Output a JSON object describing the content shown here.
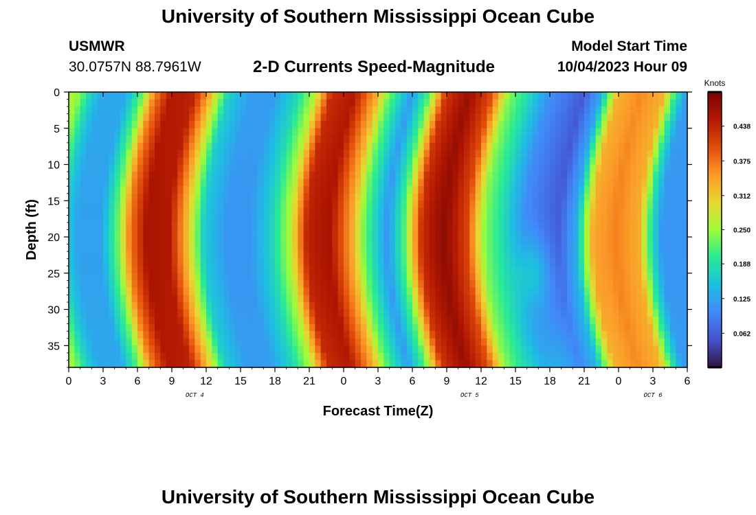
{
  "header": {
    "title": "University of Southern Mississippi Ocean Cube",
    "station": "USMWR",
    "coords": "30.0757N  88.7961W",
    "subtitle": "2-D Currents Speed-Magnitude",
    "start_label": "Model Start Time",
    "start_value": "10/04/2023 Hour 09"
  },
  "footer": {
    "title": "University of Southern Mississippi Ocean Cube"
  },
  "chart_data": {
    "type": "heatmap",
    "title": "2-D Currents Speed-Magnitude",
    "xlabel": "Forecast Time(Z)",
    "ylabel": "Depth (ft)",
    "x_tick_labels": [
      "0",
      "3",
      "6",
      "9",
      "12",
      "15",
      "18",
      "21",
      "0",
      "3",
      "6",
      "9",
      "12",
      "15",
      "18",
      "21",
      "0",
      "3",
      "6"
    ],
    "x_range_hours": [
      0,
      54
    ],
    "date_labels": [
      {
        "text": "OCT 4",
        "hour": 11
      },
      {
        "text": "OCT 5",
        "hour": 35
      },
      {
        "text": "OCT 6",
        "hour": 51
      }
    ],
    "y_ticks": [
      0,
      5,
      10,
      15,
      20,
      25,
      30,
      35
    ],
    "ylim": [
      0,
      38
    ],
    "y_inverted": true,
    "colorbar": {
      "label": "Knots",
      "range": [
        0,
        0.5
      ],
      "ticks": [
        "0.062",
        "0.125",
        "0.188",
        "0.250",
        "0.312",
        "0.375",
        "0.438"
      ],
      "colormap": "turbo"
    },
    "surface_speed_knots": [
      {
        "hour": 0,
        "value": 0.27
      },
      {
        "hour": 1,
        "value": 0.24
      },
      {
        "hour": 2,
        "value": 0.17
      },
      {
        "hour": 3,
        "value": 0.13
      },
      {
        "hour": 5,
        "value": 0.13
      },
      {
        "hour": 6.5,
        "value": 0.23
      },
      {
        "hour": 7.5,
        "value": 0.36
      },
      {
        "hour": 9,
        "value": 0.45
      },
      {
        "hour": 11,
        "value": 0.44
      },
      {
        "hour": 12.5,
        "value": 0.32
      },
      {
        "hour": 14,
        "value": 0.17
      },
      {
        "hour": 16,
        "value": 0.12
      },
      {
        "hour": 18,
        "value": 0.12
      },
      {
        "hour": 20,
        "value": 0.18
      },
      {
        "hour": 21.5,
        "value": 0.26
      },
      {
        "hour": 23,
        "value": 0.43
      },
      {
        "hour": 25,
        "value": 0.45
      },
      {
        "hour": 27,
        "value": 0.33
      },
      {
        "hour": 28,
        "value": 0.23
      },
      {
        "hour": 30,
        "value": 0.12
      },
      {
        "hour": 31.5,
        "value": 0.22
      },
      {
        "hour": 33,
        "value": 0.42
      },
      {
        "hour": 35,
        "value": 0.47
      },
      {
        "hour": 37,
        "value": 0.4
      },
      {
        "hour": 38.5,
        "value": 0.24
      },
      {
        "hour": 40,
        "value": 0.19
      },
      {
        "hour": 42,
        "value": 0.11
      },
      {
        "hour": 45,
        "value": 0.06
      },
      {
        "hour": 46.5,
        "value": 0.13
      },
      {
        "hour": 48,
        "value": 0.33
      },
      {
        "hour": 50,
        "value": 0.36
      },
      {
        "hour": 52,
        "value": 0.33
      },
      {
        "hour": 53,
        "value": 0.2
      },
      {
        "hour": 54,
        "value": 0.12
      }
    ]
  }
}
